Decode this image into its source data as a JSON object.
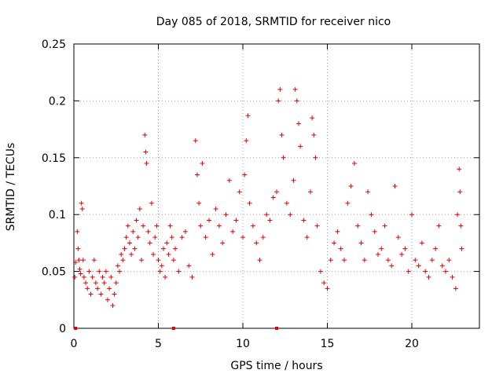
{
  "chart_data": {
    "type": "scatter",
    "title": "Day 085 of 2018, SRMTID for receiver nico",
    "xlabel": "GPS time / hours",
    "ylabel": "SRMTID / TECUs",
    "xlim": [
      0,
      24
    ],
    "ylim": [
      0,
      0.25
    ],
    "x_ticks": [
      0,
      5,
      10,
      15,
      20
    ],
    "x_tick_labels": [
      "0",
      "5",
      "10",
      "15",
      "20"
    ],
    "y_ticks": [
      0,
      0.05,
      0.1,
      0.15,
      0.2,
      0.25
    ],
    "y_tick_labels": [
      "0",
      "0.05",
      "0.1",
      "0.15",
      "0.2",
      "0.25"
    ],
    "grid": true,
    "marker": "plus",
    "color": "#e00000",
    "zero_markers": [
      0.1,
      5.9,
      12.0
    ],
    "series": [
      {
        "points": [
          [
            0.05,
            0.045
          ],
          [
            0.1,
            0.058
          ],
          [
            0.2,
            0.085
          ],
          [
            0.25,
            0.07
          ],
          [
            0.3,
            0.06
          ],
          [
            0.35,
            0.052
          ],
          [
            0.4,
            0.048
          ],
          [
            0.45,
            0.11
          ],
          [
            0.5,
            0.105
          ],
          [
            0.55,
            0.06
          ],
          [
            0.6,
            0.045
          ],
          [
            0.7,
            0.04
          ],
          [
            0.8,
            0.035
          ],
          [
            0.9,
            0.05
          ],
          [
            1.0,
            0.03
          ],
          [
            1.1,
            0.045
          ],
          [
            1.2,
            0.06
          ],
          [
            1.3,
            0.04
          ],
          [
            1.4,
            0.035
          ],
          [
            1.5,
            0.05
          ],
          [
            1.6,
            0.03
          ],
          [
            1.7,
            0.045
          ],
          [
            1.8,
            0.04
          ],
          [
            1.9,
            0.05
          ],
          [
            2.0,
            0.025
          ],
          [
            2.1,
            0.035
          ],
          [
            2.2,
            0.045
          ],
          [
            2.3,
            0.02
          ],
          [
            2.4,
            0.03
          ],
          [
            2.5,
            0.04
          ],
          [
            2.6,
            0.055
          ],
          [
            2.7,
            0.05
          ],
          [
            2.8,
            0.065
          ],
          [
            2.9,
            0.06
          ],
          [
            3.0,
            0.07
          ],
          [
            3.1,
            0.08
          ],
          [
            3.2,
            0.09
          ],
          [
            3.3,
            0.075
          ],
          [
            3.4,
            0.065
          ],
          [
            3.5,
            0.085
          ],
          [
            3.6,
            0.07
          ],
          [
            3.7,
            0.095
          ],
          [
            3.8,
            0.08
          ],
          [
            3.9,
            0.105
          ],
          [
            4.0,
            0.06
          ],
          [
            4.1,
            0.09
          ],
          [
            4.2,
            0.17
          ],
          [
            4.25,
            0.155
          ],
          [
            4.3,
            0.145
          ],
          [
            4.4,
            0.085
          ],
          [
            4.5,
            0.075
          ],
          [
            4.6,
            0.11
          ],
          [
            4.7,
            0.065
          ],
          [
            4.8,
            0.08
          ],
          [
            4.9,
            0.09
          ],
          [
            5.0,
            0.06
          ],
          [
            5.1,
            0.05
          ],
          [
            5.2,
            0.055
          ],
          [
            5.3,
            0.07
          ],
          [
            5.4,
            0.045
          ],
          [
            5.5,
            0.075
          ],
          [
            5.6,
            0.065
          ],
          [
            5.7,
            0.09
          ],
          [
            5.8,
            0.08
          ],
          [
            5.9,
            0.06
          ],
          [
            6.0,
            0.07
          ],
          [
            6.2,
            0.05
          ],
          [
            6.4,
            0.08
          ],
          [
            6.6,
            0.085
          ],
          [
            6.8,
            0.055
          ],
          [
            7.0,
            0.045
          ],
          [
            7.2,
            0.165
          ],
          [
            7.3,
            0.135
          ],
          [
            7.4,
            0.11
          ],
          [
            7.5,
            0.09
          ],
          [
            7.6,
            0.145
          ],
          [
            7.8,
            0.08
          ],
          [
            8.0,
            0.095
          ],
          [
            8.2,
            0.065
          ],
          [
            8.4,
            0.105
          ],
          [
            8.6,
            0.09
          ],
          [
            8.8,
            0.075
          ],
          [
            9.0,
            0.1
          ],
          [
            9.2,
            0.13
          ],
          [
            9.4,
            0.085
          ],
          [
            9.6,
            0.095
          ],
          [
            9.8,
            0.12
          ],
          [
            10.0,
            0.08
          ],
          [
            10.1,
            0.135
          ],
          [
            10.2,
            0.165
          ],
          [
            10.3,
            0.187
          ],
          [
            10.4,
            0.11
          ],
          [
            10.6,
            0.09
          ],
          [
            10.8,
            0.075
          ],
          [
            11.0,
            0.06
          ],
          [
            11.2,
            0.08
          ],
          [
            11.4,
            0.1
          ],
          [
            11.6,
            0.095
          ],
          [
            11.8,
            0.115
          ],
          [
            12.0,
            0.12
          ],
          [
            12.1,
            0.2
          ],
          [
            12.2,
            0.21
          ],
          [
            12.3,
            0.17
          ],
          [
            12.4,
            0.15
          ],
          [
            12.6,
            0.11
          ],
          [
            12.8,
            0.1
          ],
          [
            13.0,
            0.13
          ],
          [
            13.1,
            0.21
          ],
          [
            13.2,
            0.2
          ],
          [
            13.3,
            0.18
          ],
          [
            13.4,
            0.16
          ],
          [
            13.6,
            0.095
          ],
          [
            13.8,
            0.08
          ],
          [
            14.0,
            0.12
          ],
          [
            14.1,
            0.185
          ],
          [
            14.2,
            0.17
          ],
          [
            14.3,
            0.15
          ],
          [
            14.4,
            0.09
          ],
          [
            14.6,
            0.05
          ],
          [
            14.8,
            0.04
          ],
          [
            15.0,
            0.035
          ],
          [
            15.2,
            0.06
          ],
          [
            15.4,
            0.075
          ],
          [
            15.6,
            0.085
          ],
          [
            15.8,
            0.07
          ],
          [
            16.0,
            0.06
          ],
          [
            16.2,
            0.11
          ],
          [
            16.4,
            0.125
          ],
          [
            16.6,
            0.145
          ],
          [
            16.8,
            0.09
          ],
          [
            17.0,
            0.075
          ],
          [
            17.2,
            0.06
          ],
          [
            17.4,
            0.12
          ],
          [
            17.6,
            0.1
          ],
          [
            17.8,
            0.085
          ],
          [
            18.0,
            0.065
          ],
          [
            18.2,
            0.07
          ],
          [
            18.4,
            0.09
          ],
          [
            18.6,
            0.06
          ],
          [
            18.8,
            0.055
          ],
          [
            19.0,
            0.125
          ],
          [
            19.2,
            0.08
          ],
          [
            19.4,
            0.065
          ],
          [
            19.6,
            0.07
          ],
          [
            19.8,
            0.05
          ],
          [
            20.0,
            0.1
          ],
          [
            20.2,
            0.06
          ],
          [
            20.4,
            0.055
          ],
          [
            20.6,
            0.075
          ],
          [
            20.8,
            0.05
          ],
          [
            21.0,
            0.045
          ],
          [
            21.2,
            0.06
          ],
          [
            21.4,
            0.07
          ],
          [
            21.6,
            0.09
          ],
          [
            21.8,
            0.055
          ],
          [
            22.0,
            0.05
          ],
          [
            22.2,
            0.06
          ],
          [
            22.4,
            0.045
          ],
          [
            22.6,
            0.035
          ],
          [
            22.7,
            0.1
          ],
          [
            22.8,
            0.14
          ],
          [
            22.85,
            0.12
          ],
          [
            22.9,
            0.09
          ],
          [
            22.95,
            0.07
          ]
        ]
      }
    ]
  }
}
